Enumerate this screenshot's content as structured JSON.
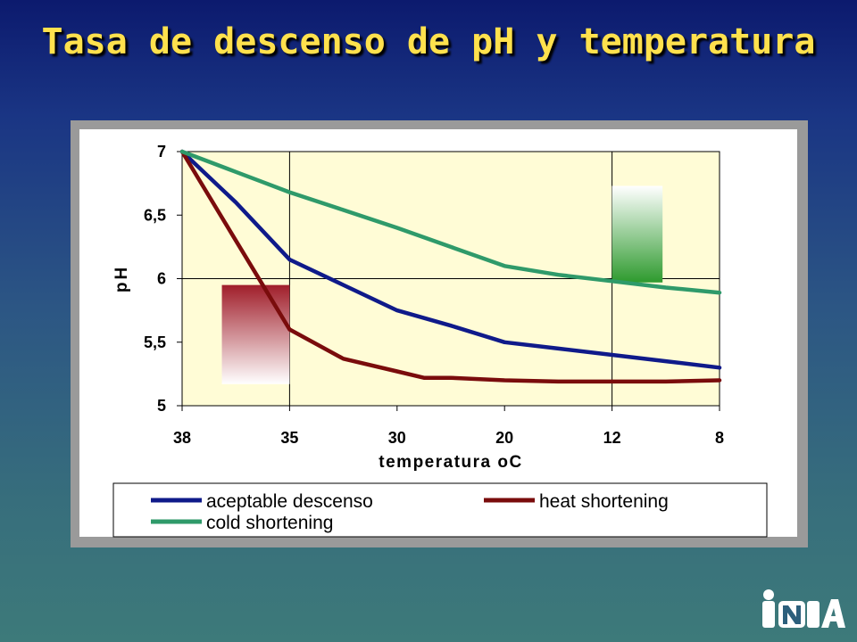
{
  "slide": {
    "title": "Tasa de descenso de pH y temperatura",
    "logo_text": "INIA"
  },
  "colors": {
    "title": "#ffe14d",
    "plot_bg": "#fffcd6",
    "aceptable": "#0f1a8a",
    "heat": "#7a0c0c",
    "cold": "#2f9a6a",
    "heat_box": "#a01e2a",
    "cold_box": "#2e9a2e"
  },
  "chart_data": {
    "type": "line",
    "xlabel": "temperatura oC",
    "ylabel": "pH",
    "categories": [
      "38",
      "35",
      "30",
      "20",
      "12",
      "8"
    ],
    "x_index_range": [
      0,
      5
    ],
    "ylim": [
      5,
      7
    ],
    "yticks": [
      5,
      5.5,
      6,
      6.5,
      7
    ],
    "ytick_labels": [
      "5",
      "5,5",
      "6",
      "6,5",
      "7"
    ],
    "vertical_lines_at": [
      "35",
      "12"
    ],
    "horizontal_line_at": 6,
    "legend_position": "bottom",
    "series": [
      {
        "name": "aceptable descenso",
        "color": "#0f1a8a",
        "x": [
          0,
          0.5,
          1,
          1.5,
          2,
          2.5,
          3,
          3.5,
          4,
          4.5,
          5
        ],
        "y": [
          7,
          6.6,
          6.15,
          5.95,
          5.75,
          5.63,
          5.5,
          5.45,
          5.4,
          5.35,
          5.3
        ]
      },
      {
        "name": "heat shortening",
        "color": "#7a0c0c",
        "x": [
          0,
          0.25,
          0.5,
          0.75,
          1,
          1.5,
          2,
          2.25,
          2.5,
          3,
          3.5,
          4,
          4.5,
          5
        ],
        "y": [
          7,
          6.65,
          6.3,
          5.95,
          5.6,
          5.37,
          5.27,
          5.22,
          5.22,
          5.2,
          5.19,
          5.19,
          5.19,
          5.2
        ]
      },
      {
        "name": "cold shortening",
        "color": "#2f9a6a",
        "x": [
          0,
          0.25,
          0.5,
          0.75,
          1,
          1.5,
          2,
          2.5,
          3,
          3.5,
          4,
          4.5,
          5
        ],
        "y": [
          7,
          6.92,
          6.84,
          6.76,
          6.68,
          6.54,
          6.4,
          6.25,
          6.1,
          6.03,
          5.98,
          5.93,
          5.89
        ]
      }
    ],
    "annotations": [
      {
        "kind": "shaded-box",
        "color": "#a01e2a",
        "x_from": 0.37,
        "x_to": 1,
        "y_from": 5.17,
        "y_to": 5.95
      },
      {
        "kind": "shaded-box",
        "color": "#2e9a2e",
        "x_from": 4,
        "x_to": 4.47,
        "y_from": 5.97,
        "y_to": 6.73
      }
    ]
  }
}
